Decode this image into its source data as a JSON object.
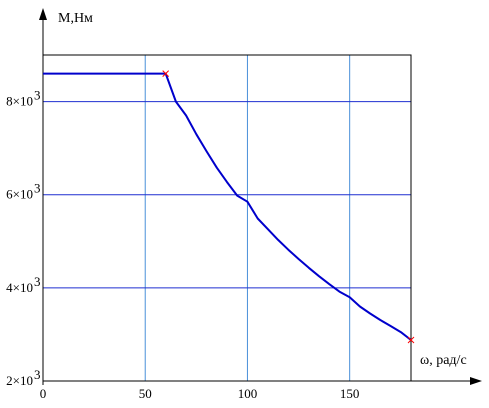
{
  "chart_data": {
    "type": "line",
    "title": "",
    "ylabel": "M,Нм",
    "xlabel": "ω, рад/с",
    "xlim": [
      0,
      180
    ],
    "ylim": [
      2000,
      9000
    ],
    "x_ticks": [
      0,
      50,
      100,
      150
    ],
    "x_tick_labels": [
      "0",
      "50",
      "100",
      "150"
    ],
    "y_ticks": [
      2000,
      4000,
      6000,
      8000
    ],
    "y_tick_labels": [
      {
        "mantissa": "2×10",
        "exp": "3"
      },
      {
        "mantissa": "4×10",
        "exp": "3"
      },
      {
        "mantissa": "6×10",
        "exp": "3"
      },
      {
        "mantissa": "8×10",
        "exp": "3"
      }
    ],
    "grid": true,
    "series": [
      {
        "color": "#0000cc",
        "x": [
          0,
          58,
          60,
          65,
          70,
          75,
          80,
          85,
          90,
          95,
          100,
          105,
          110,
          115,
          120,
          125,
          130,
          135,
          140,
          145,
          150,
          155,
          160,
          165,
          170,
          175,
          180
        ],
        "y": [
          8600,
          8600,
          8600,
          8000,
          7700,
          7300,
          6930,
          6580,
          6270,
          5980,
          5850,
          5490,
          5260,
          5030,
          4820,
          4620,
          4430,
          4250,
          4080,
          3920,
          3800,
          3600,
          3450,
          3310,
          3180,
          3050,
          2880
        ]
      }
    ],
    "markers": [
      {
        "x": 60,
        "y": 8600,
        "color": "#ff0000",
        "shape": "x"
      },
      {
        "x": 180,
        "y": 2880,
        "color": "#ff0000",
        "shape": "x"
      }
    ],
    "grid_color": "#4a90d9",
    "frame_color": "#000000"
  }
}
